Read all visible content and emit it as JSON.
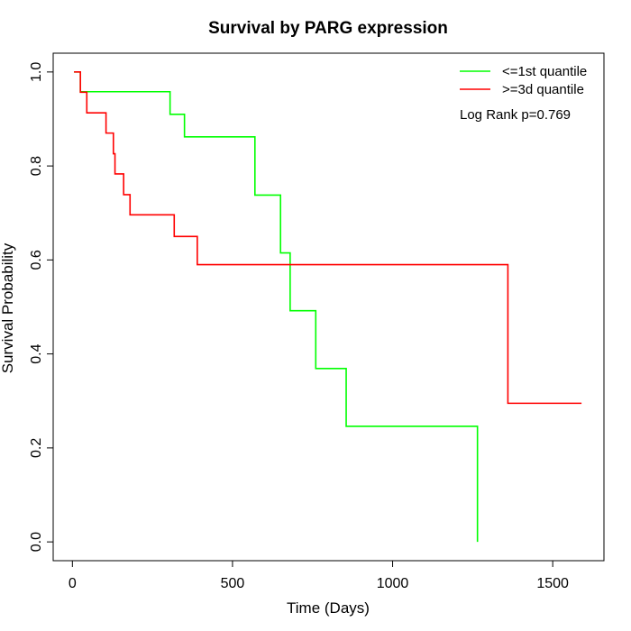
{
  "chart_data": {
    "type": "line",
    "title": "Survival by PARG expression",
    "xlabel": "Time (Days)",
    "ylabel": "Survival Probability",
    "xlim": [
      -60,
      1660
    ],
    "ylim": [
      -0.04,
      1.04
    ],
    "x_ticks": [
      0,
      500,
      1000,
      1500
    ],
    "x_tick_labels": [
      "0",
      "500",
      "1000",
      "1500"
    ],
    "y_ticks": [
      0.0,
      0.2,
      0.4,
      0.6,
      0.8,
      1.0
    ],
    "y_tick_labels": [
      "0.0",
      "0.2",
      "0.4",
      "0.6",
      "0.8",
      "1.0"
    ],
    "grid": false,
    "legend_position": "top-right",
    "annotation": "Log Rank p=0.769",
    "series": [
      {
        "name": "<=1st quantile",
        "color": "#00ff00",
        "step_x": [
          5,
          25,
          305,
          350,
          570,
          650,
          680,
          760,
          855,
          1265
        ],
        "step_y": [
          1.0,
          0.958,
          0.91,
          0.862,
          0.738,
          0.615,
          0.492,
          0.369,
          0.246,
          0.0
        ]
      },
      {
        "name": ">=3d quantile",
        "color": "#ff0000",
        "step_x": [
          5,
          25,
          45,
          105,
          128,
          133,
          148,
          160,
          180,
          318,
          390,
          1360,
          1590
        ],
        "step_y": [
          1.0,
          0.957,
          0.913,
          0.87,
          0.826,
          0.783,
          0.783,
          0.739,
          0.696,
          0.65,
          0.59,
          0.295,
          0.295
        ]
      }
    ]
  }
}
